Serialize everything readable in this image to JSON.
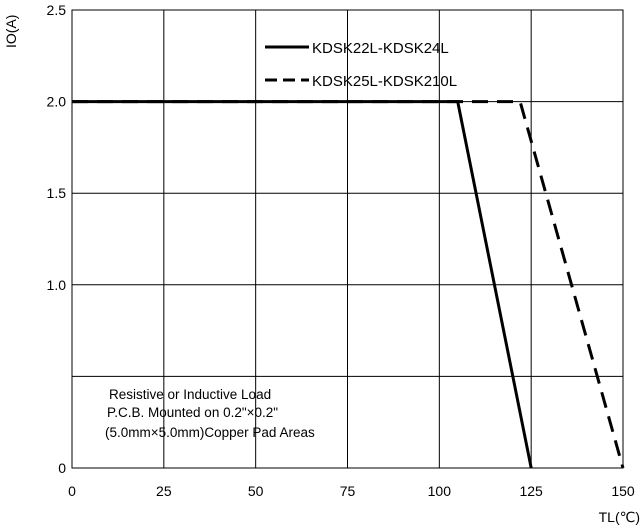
{
  "chart_data": {
    "type": "line",
    "title": "",
    "xlabel": "TL(℃)",
    "ylabel": "IO(A)",
    "xlim": [
      0,
      150
    ],
    "ylim": [
      0,
      2.5
    ],
    "x_ticks": [
      0,
      25,
      50,
      75,
      100,
      125,
      150
    ],
    "x_tick_labels": [
      "0",
      "25",
      "50",
      "75",
      "100",
      "125",
      "150"
    ],
    "y_gridlines": [
      0,
      0.5,
      1.0,
      1.5,
      2.0,
      2.5
    ],
    "y_tick_labels": [
      {
        "value": 0,
        "label": "0"
      },
      {
        "value": 1.0,
        "label": "1.0"
      },
      {
        "value": 1.5,
        "label": "1.5"
      },
      {
        "value": 2.0,
        "label": "2.0"
      },
      {
        "value": 2.5,
        "label": "2.5"
      }
    ],
    "grid": true,
    "legend_position": "top-right",
    "series": [
      {
        "name": "KDSK22L-KDSK24L",
        "style": "solid",
        "points": [
          [
            0,
            2.0
          ],
          [
            105,
            2.0
          ],
          [
            125,
            0
          ]
        ]
      },
      {
        "name": "KDSK25L-KDSK210L",
        "style": "dashed",
        "points": [
          [
            0,
            2.0
          ],
          [
            122,
            2.0
          ],
          [
            150,
            0
          ]
        ]
      }
    ],
    "annotation": [
      "Resistive or Inductive Load",
      "P.C.B. Mounted on 0.2\"×0.2\"",
      "(5.0mm×5.0mm)Copper Pad Areas"
    ]
  }
}
